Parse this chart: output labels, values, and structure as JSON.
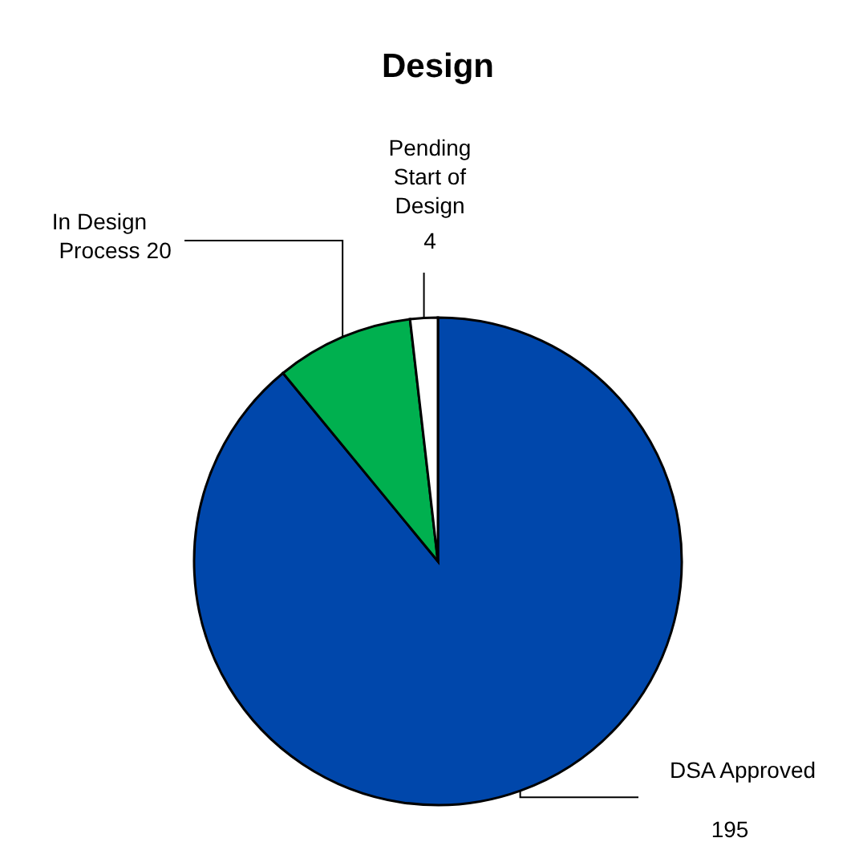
{
  "chart_data": {
    "type": "pie",
    "title": "Design",
    "categories": [
      "DSA Approved",
      "In Design Process",
      "Pending Start of Design"
    ],
    "values": [
      195,
      20,
      4
    ],
    "colors": [
      "#0047ab",
      "#00b04f",
      "#ffffff"
    ],
    "data_labels": true
  }
}
